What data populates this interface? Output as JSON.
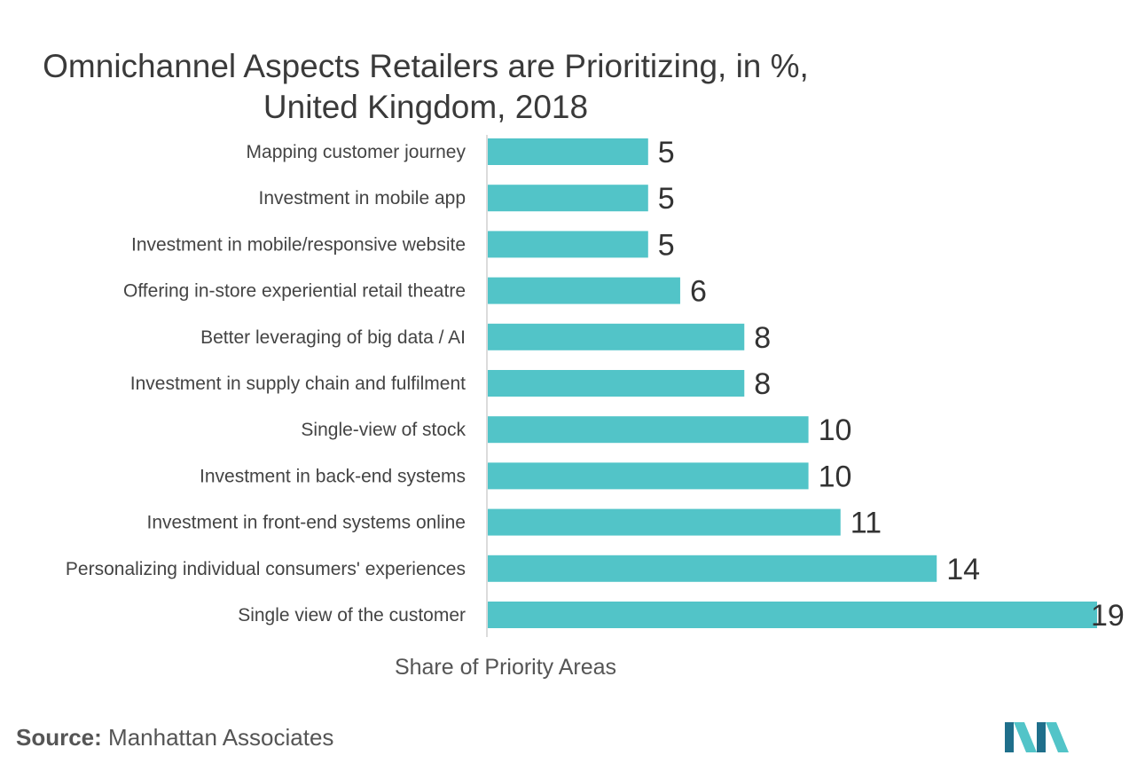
{
  "chart_data": {
    "type": "bar",
    "orientation": "horizontal",
    "title": [
      "Omnichannel Aspects Retailers are Prioritizing, in %,",
      "United Kingdom, 2018"
    ],
    "categories": [
      "Mapping customer journey",
      "Investment in mobile app",
      "Investment in mobile/responsive website",
      "Offering in-store experiential retail theatre",
      "Better leveraging of big data / AI",
      "Investment in supply chain and fulfilment",
      "Single-view of stock",
      "Investment in back-end systems",
      "Investment in front-end systems online",
      "Personalizing individual consumers' experiences",
      "Single view of the customer"
    ],
    "values": [
      5,
      5,
      5,
      6,
      8,
      8,
      10,
      10,
      11,
      14,
      19
    ],
    "xlabel": "Share of Priority Areas",
    "ylabel": "",
    "xlim": [
      0,
      19
    ],
    "grid": false,
    "bar_color": "#52c4c8"
  },
  "source": {
    "label": "Source:",
    "text": "Manhattan Associates"
  },
  "colors": {
    "bar": "#52c4c8",
    "logo_dark": "#1f6f8b",
    "logo_light": "#52c4c8"
  }
}
